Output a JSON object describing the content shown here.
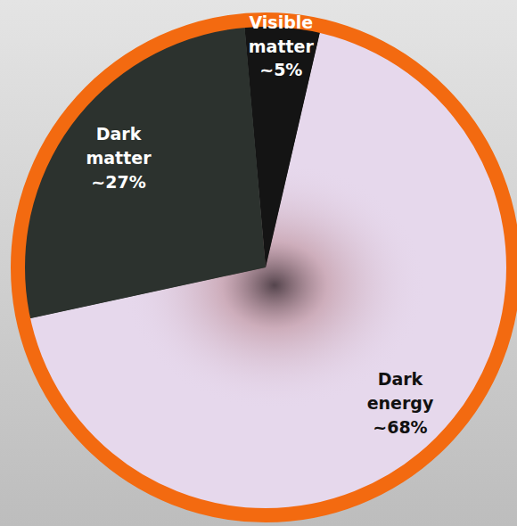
{
  "chart_data": {
    "type": "pie",
    "categories": [
      "Visible matter",
      "Dark matter",
      "Dark energy"
    ],
    "values": [
      5,
      27,
      68
    ],
    "value_labels": [
      "~5%",
      "~27%",
      "~68%"
    ],
    "colors": [
      "#141414",
      "#2c322e",
      "#e6d8ec"
    ],
    "data_labels": true
  }
}
